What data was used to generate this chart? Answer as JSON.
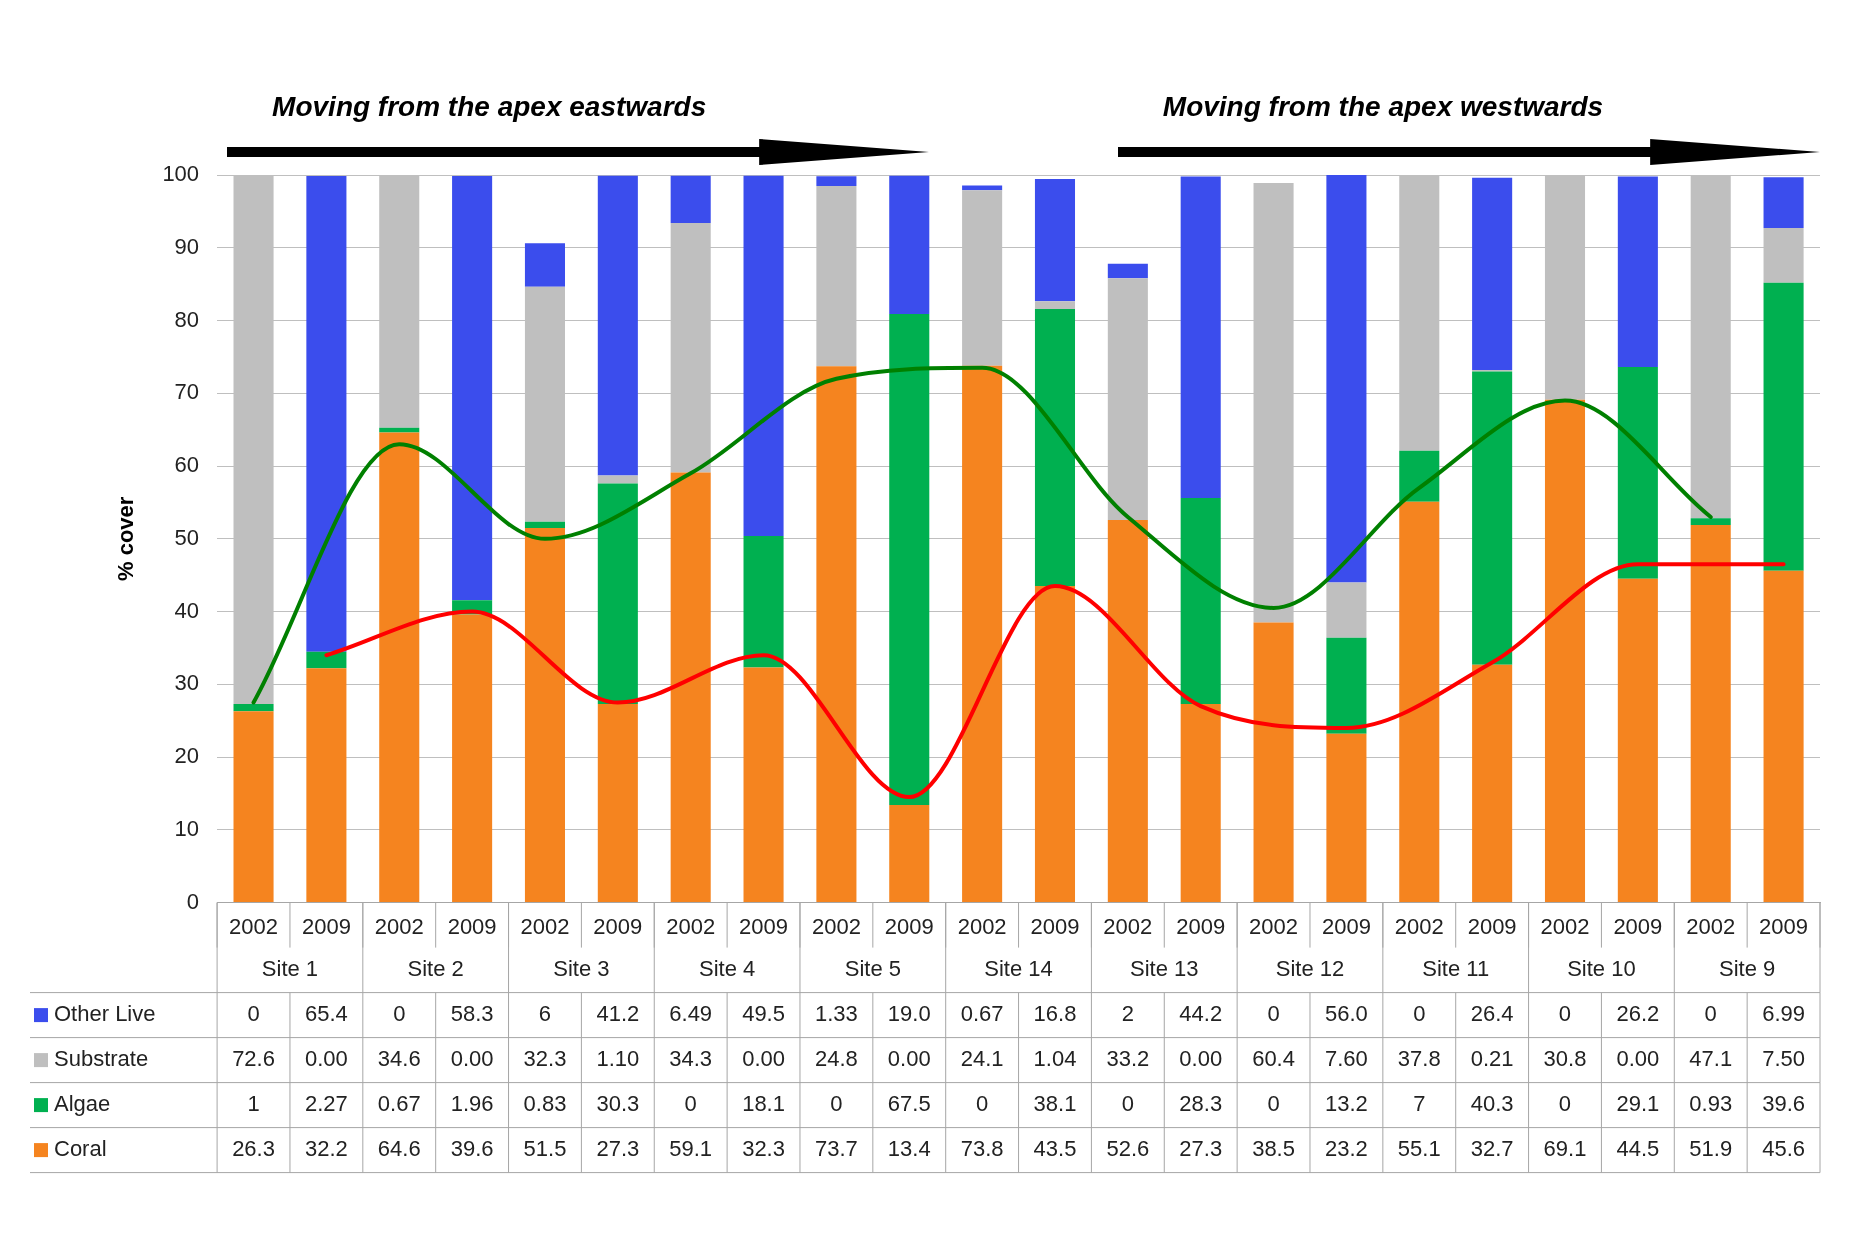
{
  "chart_data": {
    "type": "bar",
    "stacked": true,
    "ylabel": "% cover",
    "ylim": [
      0,
      100
    ],
    "yticks": [
      0,
      10,
      20,
      30,
      40,
      50,
      60,
      70,
      80,
      90,
      100
    ],
    "grid": "y",
    "legend": "bottom left",
    "marker": "none",
    "categories": [
      "2002",
      "2009",
      "2002",
      "2009",
      "2002",
      "2009",
      "2002",
      "2009",
      "2002",
      "2009",
      "2002",
      "2009",
      "2002",
      "2009",
      "2002",
      "2009",
      "2002",
      "2009",
      "2002",
      "2009",
      "2002",
      "2009"
    ],
    "annotations": [
      "Moving from the apex eastwards",
      "Moving from the apex westwards",
      "Site 1",
      "Site 2",
      "Site 3",
      "Site 4",
      "Site 5",
      "Site 14",
      "Site 13",
      "Site 12",
      "Site 11",
      "Site 10",
      "Site 9"
    ],
    "series": [
      {
        "name": "Coral",
        "color": "#f5841f",
        "values": [
          26.3,
          32.2,
          64.6,
          39.6,
          51.5,
          27.3,
          59.1,
          32.3,
          73.7,
          13.4,
          73.8,
          43.5,
          52.6,
          27.3,
          38.5,
          23.2,
          55.1,
          32.7,
          69.1,
          44.5,
          51.9,
          45.6
        ],
        "value_labels": [
          "26.3",
          "32.2",
          "64.6",
          "39.6",
          "51.5",
          "27.3",
          "59.1",
          "32.3",
          "73.7",
          "13.4",
          "73.8",
          "43.5",
          "52.6",
          "27.3",
          "38.5",
          "23.2",
          "55.1",
          "32.7",
          "69.1",
          "44.5",
          "51.9",
          "45.6"
        ]
      },
      {
        "name": "Algae",
        "color": "#00b050",
        "values": [
          1,
          2.27,
          0.67,
          1.96,
          0.83,
          30.3,
          0,
          18.1,
          0,
          67.5,
          0,
          38.1,
          0,
          28.3,
          0,
          13.2,
          7,
          40.3,
          0,
          29.1,
          0.93,
          39.6
        ],
        "value_labels": [
          "1",
          "2.27",
          "0.67",
          "1.96",
          "0.83",
          "30.3",
          "0",
          "18.1",
          "0",
          "67.5",
          "0",
          "38.1",
          "0",
          "28.3",
          "0",
          "13.2",
          "7",
          "40.3",
          "0",
          "29.1",
          "0.93",
          "39.6"
        ]
      },
      {
        "name": "Substrate",
        "color": "#bfbfbf",
        "values": [
          72.6,
          0,
          34.6,
          0,
          32.3,
          1.1,
          34.3,
          0,
          24.8,
          0,
          24.1,
          1.04,
          33.2,
          0,
          60.4,
          7.6,
          37.8,
          0.21,
          30.8,
          0,
          47.1,
          7.5
        ],
        "value_labels": [
          "72.6",
          "0.00",
          "34.6",
          "0.00",
          "32.3",
          "1.10",
          "34.3",
          "0.00",
          "24.8",
          "0.00",
          "24.1",
          "1.04",
          "33.2",
          "0.00",
          "60.4",
          "7.60",
          "37.8",
          "0.21",
          "30.8",
          "0.00",
          "47.1",
          "7.50"
        ]
      },
      {
        "name": "Other Live",
        "color": "#3b4ded",
        "values": [
          0,
          65.4,
          0,
          58.3,
          6,
          41.2,
          6.49,
          49.5,
          1.33,
          19,
          0.67,
          16.8,
          2,
          44.2,
          0,
          56,
          0,
          26.4,
          0,
          26.2,
          0,
          6.99
        ],
        "value_labels": [
          "0",
          "65.4",
          "0",
          "58.3",
          "6",
          "41.2",
          "6.49",
          "49.5",
          "1.33",
          "19.0",
          "0.67",
          "16.8",
          "2",
          "44.2",
          "0",
          "56.0",
          "0",
          "26.4",
          "0",
          "26.2",
          "0",
          "6.99"
        ]
      },
      {
        "type": "line",
        "color": "#008000",
        "values": [
          27.5,
          null,
          63,
          null,
          50,
          null,
          59,
          null,
          72,
          null,
          73.5,
          null,
          53,
          null,
          40.5,
          null,
          57,
          null,
          69,
          null,
          53,
          null
        ]
      },
      {
        "type": "line",
        "color": "#ff0000",
        "values": [
          null,
          34,
          null,
          40,
          null,
          27.5,
          null,
          34,
          null,
          14.5,
          null,
          43.5,
          null,
          27,
          null,
          24,
          null,
          33,
          null,
          46.5,
          null,
          46.5
        ]
      }
    ]
  }
}
